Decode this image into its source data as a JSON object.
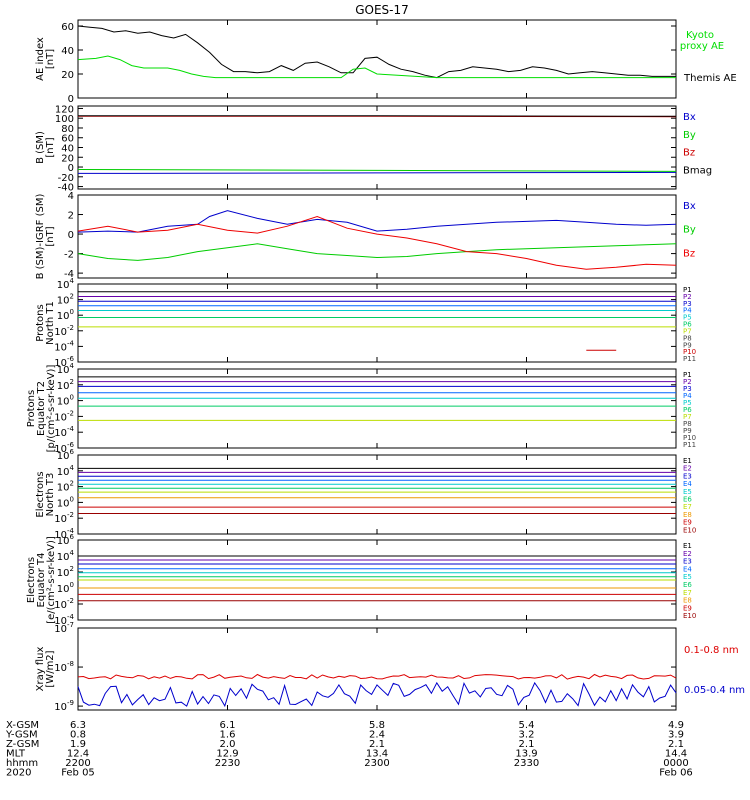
{
  "title": "GOES-17",
  "chart_data": [
    {
      "type": "line",
      "panel": "ae",
      "ylabel": [
        "AE index",
        "[nT]"
      ],
      "yticks": [
        0,
        20,
        40,
        60
      ],
      "ylim": [
        0,
        65
      ],
      "series": [
        {
          "name": "Themis AE",
          "color": "#000000",
          "x": [
            0.0,
            0.02,
            0.04,
            0.06,
            0.08,
            0.1,
            0.12,
            0.14,
            0.16,
            0.18,
            0.2,
            0.22,
            0.24,
            0.26,
            0.28,
            0.3,
            0.32,
            0.34,
            0.36,
            0.38,
            0.4,
            0.42,
            0.44,
            0.46,
            0.48,
            0.5,
            0.52,
            0.54,
            0.56,
            0.58,
            0.6,
            0.62,
            0.64,
            0.66,
            0.68,
            0.7,
            0.72,
            0.74,
            0.76,
            0.78,
            0.8,
            0.82,
            0.84,
            0.86,
            0.88,
            0.9,
            0.92,
            0.94,
            0.96,
            0.98,
            1.0
          ],
          "y": [
            60,
            59,
            58,
            55,
            56,
            54,
            55,
            52,
            50,
            53,
            46,
            38,
            28,
            22,
            22,
            21,
            22,
            27,
            23,
            29,
            30,
            26,
            21,
            21,
            33,
            34,
            28,
            24,
            22,
            19,
            17,
            22,
            23,
            26,
            25,
            24,
            22,
            23,
            26,
            25,
            23,
            20,
            21,
            22,
            21,
            20,
            19,
            19,
            18,
            18,
            18
          ]
        },
        {
          "name": "Kyoto proxy AE",
          "color": "#00dd00",
          "x": [
            0.0,
            0.03,
            0.05,
            0.07,
            0.09,
            0.11,
            0.13,
            0.15,
            0.17,
            0.19,
            0.21,
            0.23,
            0.25,
            0.27,
            0.4,
            0.42,
            0.44,
            0.46,
            0.48,
            0.5,
            0.6,
            0.8,
            1.0
          ],
          "y": [
            32,
            33,
            35,
            32,
            27,
            25,
            25,
            25,
            23,
            20,
            18,
            17,
            17,
            17,
            17,
            17,
            17,
            24,
            25,
            20,
            17,
            17,
            17
          ]
        }
      ]
    },
    {
      "type": "line",
      "panel": "b_sm",
      "ylabel": [
        "B (SM)",
        "[nT]"
      ],
      "yticks": [
        120,
        100,
        80,
        60,
        40,
        20,
        0,
        -20,
        -40
      ],
      "ylim": [
        -45,
        125
      ],
      "legend": [
        "Bx",
        "By",
        "Bz",
        "Bmag"
      ],
      "series": [
        {
          "name": "Bx",
          "color": "#0000cc",
          "x": [
            0,
            0.5,
            1
          ],
          "y": [
            -13,
            -12,
            -11
          ]
        },
        {
          "name": "By",
          "color": "#00cc00",
          "x": [
            0,
            0.5,
            1
          ],
          "y": [
            -5,
            -7,
            -9
          ]
        },
        {
          "name": "Bz",
          "color": "#cc0000",
          "x": [
            0,
            0.5,
            1
          ],
          "y": [
            104,
            104,
            103
          ]
        },
        {
          "name": "Bmag",
          "color": "#000000",
          "x": [
            0,
            0.5,
            1
          ],
          "y": [
            105,
            105,
            104
          ]
        }
      ]
    },
    {
      "type": "line",
      "panel": "b_igrf",
      "ylabel": [
        "B (SM)-IGRF (SM)",
        "[nT]"
      ],
      "yticks": [
        4,
        2,
        0,
        -2,
        -4
      ],
      "ylim": [
        -4.5,
        4
      ],
      "legend": [
        "Bx",
        "By",
        "Bz"
      ],
      "series": [
        {
          "name": "Bx",
          "color": "#0000cc",
          "x": [
            0,
            0.05,
            0.1,
            0.15,
            0.2,
            0.22,
            0.25,
            0.3,
            0.35,
            0.4,
            0.45,
            0.5,
            0.55,
            0.6,
            0.65,
            0.7,
            0.75,
            0.8,
            0.85,
            0.9,
            0.95,
            1.0
          ],
          "y": [
            0.2,
            0.3,
            0.2,
            0.8,
            1.0,
            1.8,
            2.4,
            1.6,
            1.0,
            1.5,
            1.2,
            0.3,
            0.5,
            0.8,
            1.0,
            1.2,
            1.3,
            1.4,
            1.2,
            1.0,
            0.9,
            1.0
          ]
        },
        {
          "name": "By",
          "color": "#00cc00",
          "x": [
            0,
            0.05,
            0.1,
            0.15,
            0.2,
            0.25,
            0.3,
            0.35,
            0.4,
            0.45,
            0.5,
            0.55,
            0.6,
            0.65,
            0.7,
            0.75,
            0.8,
            0.85,
            0.9,
            0.95,
            1.0
          ],
          "y": [
            -2.0,
            -2.5,
            -2.7,
            -2.4,
            -1.8,
            -1.4,
            -1.0,
            -1.5,
            -2.0,
            -2.2,
            -2.4,
            -2.3,
            -2.0,
            -1.8,
            -1.6,
            -1.5,
            -1.4,
            -1.3,
            -1.2,
            -1.1,
            -1.0
          ]
        },
        {
          "name": "Bz",
          "color": "#ee0000",
          "x": [
            0,
            0.05,
            0.1,
            0.15,
            0.2,
            0.25,
            0.3,
            0.35,
            0.4,
            0.45,
            0.5,
            0.55,
            0.6,
            0.65,
            0.7,
            0.75,
            0.8,
            0.85,
            0.9,
            0.95,
            1.0
          ],
          "y": [
            0.3,
            0.8,
            0.2,
            0.4,
            1.0,
            0.4,
            0.1,
            0.8,
            1.8,
            0.6,
            0.0,
            -0.4,
            -1.0,
            -1.8,
            -2.0,
            -2.5,
            -3.2,
            -3.6,
            -3.4,
            -3.1,
            -3.2
          ]
        }
      ]
    },
    {
      "type": "line",
      "panel": "protons_t1",
      "ylabel": [
        "Protons",
        "North T1"
      ],
      "log": true,
      "yticks_exp": [
        4,
        2,
        0,
        -2,
        -4,
        -6
      ],
      "ylim_exp": [
        -6,
        4
      ],
      "gap": [
        0.37,
        0.47
      ],
      "legend": [
        "P1",
        "P2",
        "P3",
        "P4",
        "P5",
        "P6",
        "P7",
        "P8",
        "P9",
        "P10",
        "P11"
      ],
      "series": [
        {
          "name": "P1",
          "color": "#000000",
          "level": 3.0
        },
        {
          "name": "P2",
          "color": "#6600aa",
          "level": 2.4
        },
        {
          "name": "P3",
          "color": "#0000cc",
          "level": 1.8
        },
        {
          "name": "P4",
          "color": "#0066ff",
          "level": 1.2
        },
        {
          "name": "P5",
          "color": "#00cccc",
          "level": 0.6
        },
        {
          "name": "P6",
          "color": "#00cc66",
          "level": -0.3
        },
        {
          "name": "P7",
          "color": "#bbdd00",
          "level": -1.5
        },
        {
          "name": "P10",
          "color": "#cc0000",
          "level": -4.5,
          "x": [
            0.85,
            0.9
          ]
        }
      ]
    },
    {
      "type": "line",
      "panel": "protons_t2",
      "ylabel": [
        "Protons",
        "Equator T2",
        "[p/(cm²-s-sr-keV)]"
      ],
      "log": true,
      "yticks_exp": [
        4,
        2,
        0,
        -2,
        -4,
        -6
      ],
      "ylim_exp": [
        -6,
        4
      ],
      "gap": [
        0.37,
        0.47
      ],
      "legend": [
        "P1",
        "P2",
        "P3",
        "P4",
        "P5",
        "P6",
        "P7",
        "P8",
        "P9",
        "P10",
        "P11"
      ],
      "series": [
        {
          "name": "P1",
          "color": "#000000",
          "level": 3.0
        },
        {
          "name": "P2",
          "color": "#6600aa",
          "level": 2.4
        },
        {
          "name": "P3",
          "color": "#0000cc",
          "level": 1.8
        },
        {
          "name": "P4",
          "color": "#0066ff",
          "level": 1.0
        },
        {
          "name": "P5",
          "color": "#00cccc",
          "level": 0.3
        },
        {
          "name": "P6",
          "color": "#00cc66",
          "level": -0.7
        },
        {
          "name": "P7",
          "color": "#bbdd00",
          "level": -2.5
        }
      ]
    },
    {
      "type": "line",
      "panel": "electrons_t3",
      "ylabel": [
        "Electrons",
        "North T3"
      ],
      "log": true,
      "yticks_exp": [
        6,
        4,
        2,
        0,
        -2,
        -4
      ],
      "ylim_exp": [
        -4,
        6
      ],
      "gap": [
        0.37,
        0.47
      ],
      "legend": [
        "E1",
        "E2",
        "E3",
        "E4",
        "E5",
        "E6",
        "E7",
        "E8",
        "E9",
        "E10"
      ],
      "series": [
        {
          "name": "E1",
          "color": "#000000",
          "level": 4.3
        },
        {
          "name": "E2",
          "color": "#6600aa",
          "level": 3.8
        },
        {
          "name": "E3",
          "color": "#0000cc",
          "level": 3.3
        },
        {
          "name": "E4",
          "color": "#0066ff",
          "level": 2.8
        },
        {
          "name": "E5",
          "color": "#00cccc",
          "level": 2.3
        },
        {
          "name": "E6",
          "color": "#00cc66",
          "level": 1.8
        },
        {
          "name": "E7",
          "color": "#bbdd00",
          "level": 1.3
        },
        {
          "name": "E8",
          "color": "#ee9900",
          "level": 0.6
        },
        {
          "name": "E9",
          "color": "#cc0000",
          "level": -0.6
        },
        {
          "name": "E10",
          "color": "#990000",
          "level": -1.4
        }
      ]
    },
    {
      "type": "line",
      "panel": "electrons_t4",
      "ylabel": [
        "Electrons",
        "Equator T4",
        "[e/(cm²-s-sr-keV)]"
      ],
      "log": true,
      "yticks_exp": [
        6,
        4,
        2,
        0,
        -2,
        -4
      ],
      "ylim_exp": [
        -4,
        6
      ],
      "gap": [
        0.37,
        0.47
      ],
      "legend": [
        "E1",
        "E2",
        "E3",
        "E4",
        "E5",
        "E6",
        "E7",
        "E8",
        "E9",
        "E10"
      ],
      "series": [
        {
          "name": "E1",
          "color": "#000000",
          "level": 4.0
        },
        {
          "name": "E2",
          "color": "#6600aa",
          "level": 3.5
        },
        {
          "name": "E3",
          "color": "#0000cc",
          "level": 3.0
        },
        {
          "name": "E4",
          "color": "#0066ff",
          "level": 2.4
        },
        {
          "name": "E5",
          "color": "#00cccc",
          "level": 1.9
        },
        {
          "name": "E6",
          "color": "#00cc66",
          "level": 1.4
        },
        {
          "name": "E7",
          "color": "#bbdd00",
          "level": 1.0
        },
        {
          "name": "E8",
          "color": "#ee9900",
          "level": 0.0
        },
        {
          "name": "E9",
          "color": "#cc0000",
          "level": -0.8
        },
        {
          "name": "E10",
          "color": "#990000",
          "level": -1.6
        }
      ]
    },
    {
      "type": "line",
      "panel": "xray",
      "ylabel": [
        "Xray flux",
        "[W/m2]"
      ],
      "log": true,
      "yticks_exp": [
        -7,
        -8,
        -9
      ],
      "ylim_exp": [
        -9.1,
        -7
      ],
      "legend": [
        "0.1-0.8 nm",
        "0.05-0.4 nm"
      ],
      "series": [
        {
          "name": "0.1-0.8 nm",
          "color": "#dd0000",
          "level": -8.25
        },
        {
          "name": "0.05-0.4 nm",
          "color": "#0000cc",
          "level": -9.0
        }
      ]
    }
  ],
  "x_axis": {
    "row_labels": [
      "X-GSM",
      "Y-GSM",
      "Z-GSM",
      "MLT",
      "hhmm",
      "2020"
    ],
    "columns": [
      [
        "6.3",
        "0.8",
        "1.9",
        "12.4",
        "2200",
        "Feb 05"
      ],
      [
        "6.1",
        "1.6",
        "2.0",
        "12.9",
        "2230",
        ""
      ],
      [
        "5.8",
        "2.4",
        "2.1",
        "13.4",
        "2300",
        ""
      ],
      [
        "5.4",
        "3.2",
        "2.1",
        "13.9",
        "2330",
        ""
      ],
      [
        "4.9",
        "3.9",
        "2.1",
        "14.4",
        "0000",
        "Feb 06"
      ]
    ]
  }
}
